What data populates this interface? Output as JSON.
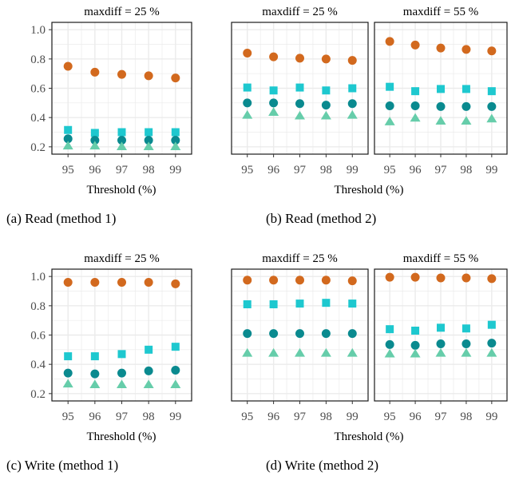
{
  "colors": {
    "circle_orange": "#d2691e",
    "square_cyan": "#1ec8cf",
    "circle_teal": "#0a8a8f",
    "triangle_green": "#66cdaa",
    "grid": "#ebebeb",
    "panel_border": "#1a1a1a",
    "tick_label": "#4d4d4d"
  },
  "chart_data": [
    {
      "type": "scatter",
      "caption": "(a) Read (method 1)",
      "xlabel": "Threshold (%)",
      "ylabel": "",
      "x": [
        95,
        96,
        97,
        98,
        99
      ],
      "ylim": [
        0.15,
        1.05
      ],
      "yticks": [
        "0.2",
        "0.4",
        "0.6",
        "0.8",
        "1.0"
      ],
      "facets": [
        {
          "strip": "maxdiff = 25 %",
          "series": [
            {
              "marker": "circle",
              "color": "circle_orange",
              "values": [
                0.75,
                0.71,
                0.695,
                0.685,
                0.67
              ]
            },
            {
              "marker": "square",
              "color": "square_cyan",
              "values": [
                0.315,
                0.295,
                0.3,
                0.3,
                0.3
              ]
            },
            {
              "marker": "circle",
              "color": "circle_teal",
              "values": [
                0.255,
                0.245,
                0.245,
                0.245,
                0.245
              ]
            },
            {
              "marker": "triangle",
              "color": "triangle_green",
              "values": [
                0.205,
                0.205,
                0.2,
                0.2,
                0.2
              ]
            }
          ]
        }
      ]
    },
    {
      "type": "scatter",
      "caption": "(b) Read (method 2)",
      "xlabel": "Threshold (%)",
      "ylabel": "",
      "x": [
        95,
        96,
        97,
        98,
        99
      ],
      "ylim": [
        0.15,
        1.05
      ],
      "yticks": [
        "0.2",
        "0.4",
        "0.6",
        "0.8",
        "1.0"
      ],
      "facets": [
        {
          "strip": "maxdiff = 25 %",
          "series": [
            {
              "marker": "circle",
              "color": "circle_orange",
              "values": [
                0.84,
                0.815,
                0.805,
                0.8,
                0.79
              ]
            },
            {
              "marker": "square",
              "color": "square_cyan",
              "values": [
                0.605,
                0.585,
                0.605,
                0.585,
                0.6
              ]
            },
            {
              "marker": "circle",
              "color": "circle_teal",
              "values": [
                0.5,
                0.5,
                0.495,
                0.485,
                0.495
              ]
            },
            {
              "marker": "triangle",
              "color": "triangle_green",
              "values": [
                0.415,
                0.435,
                0.41,
                0.41,
                0.415
              ]
            }
          ]
        },
        {
          "strip": "maxdiff = 55 %",
          "series": [
            {
              "marker": "circle",
              "color": "circle_orange",
              "values": [
                0.92,
                0.895,
                0.875,
                0.865,
                0.855
              ]
            },
            {
              "marker": "square",
              "color": "square_cyan",
              "values": [
                0.61,
                0.58,
                0.595,
                0.595,
                0.58
              ]
            },
            {
              "marker": "circle",
              "color": "circle_teal",
              "values": [
                0.48,
                0.48,
                0.475,
                0.475,
                0.475
              ]
            },
            {
              "marker": "triangle",
              "color": "triangle_green",
              "values": [
                0.37,
                0.395,
                0.375,
                0.375,
                0.39
              ]
            }
          ]
        }
      ]
    },
    {
      "type": "scatter",
      "caption": "(c) Write (method 1)",
      "xlabel": "Threshold (%)",
      "ylabel": "",
      "x": [
        95,
        96,
        97,
        98,
        99
      ],
      "ylim": [
        0.15,
        1.05
      ],
      "yticks": [
        "0.2",
        "0.4",
        "0.6",
        "0.8",
        "1.0"
      ],
      "facets": [
        {
          "strip": "maxdiff = 25 %",
          "series": [
            {
              "marker": "circle",
              "color": "circle_orange",
              "values": [
                0.96,
                0.96,
                0.96,
                0.96,
                0.95
              ]
            },
            {
              "marker": "square",
              "color": "square_cyan",
              "values": [
                0.455,
                0.455,
                0.47,
                0.5,
                0.52
              ]
            },
            {
              "marker": "circle",
              "color": "circle_teal",
              "values": [
                0.34,
                0.335,
                0.34,
                0.355,
                0.36
              ]
            },
            {
              "marker": "triangle",
              "color": "triangle_green",
              "values": [
                0.265,
                0.26,
                0.26,
                0.26,
                0.26
              ]
            }
          ]
        }
      ]
    },
    {
      "type": "scatter",
      "caption": "(d) Write (method 2)",
      "xlabel": "Threshold (%)",
      "ylabel": "",
      "x": [
        95,
        96,
        97,
        98,
        99
      ],
      "ylim": [
        0.15,
        1.05
      ],
      "yticks": [
        "0.2",
        "0.4",
        "0.6",
        "0.8",
        "1.0"
      ],
      "facets": [
        {
          "strip": "maxdiff = 25 %",
          "series": [
            {
              "marker": "circle",
              "color": "circle_orange",
              "values": [
                0.975,
                0.975,
                0.975,
                0.975,
                0.97
              ]
            },
            {
              "marker": "square",
              "color": "square_cyan",
              "values": [
                0.81,
                0.81,
                0.815,
                0.82,
                0.815
              ]
            },
            {
              "marker": "circle",
              "color": "circle_teal",
              "values": [
                0.61,
                0.61,
                0.61,
                0.61,
                0.61
              ]
            },
            {
              "marker": "triangle",
              "color": "triangle_green",
              "values": [
                0.475,
                0.475,
                0.475,
                0.475,
                0.475
              ]
            }
          ]
        },
        {
          "strip": "maxdiff = 55 %",
          "series": [
            {
              "marker": "circle",
              "color": "circle_orange",
              "values": [
                0.995,
                0.995,
                0.99,
                0.99,
                0.985
              ]
            },
            {
              "marker": "square",
              "color": "square_cyan",
              "values": [
                0.64,
                0.63,
                0.65,
                0.645,
                0.67
              ]
            },
            {
              "marker": "circle",
              "color": "circle_teal",
              "values": [
                0.535,
                0.53,
                0.54,
                0.54,
                0.545
              ]
            },
            {
              "marker": "triangle",
              "color": "triangle_green",
              "values": [
                0.47,
                0.47,
                0.475,
                0.475,
                0.475
              ]
            }
          ]
        }
      ]
    }
  ]
}
